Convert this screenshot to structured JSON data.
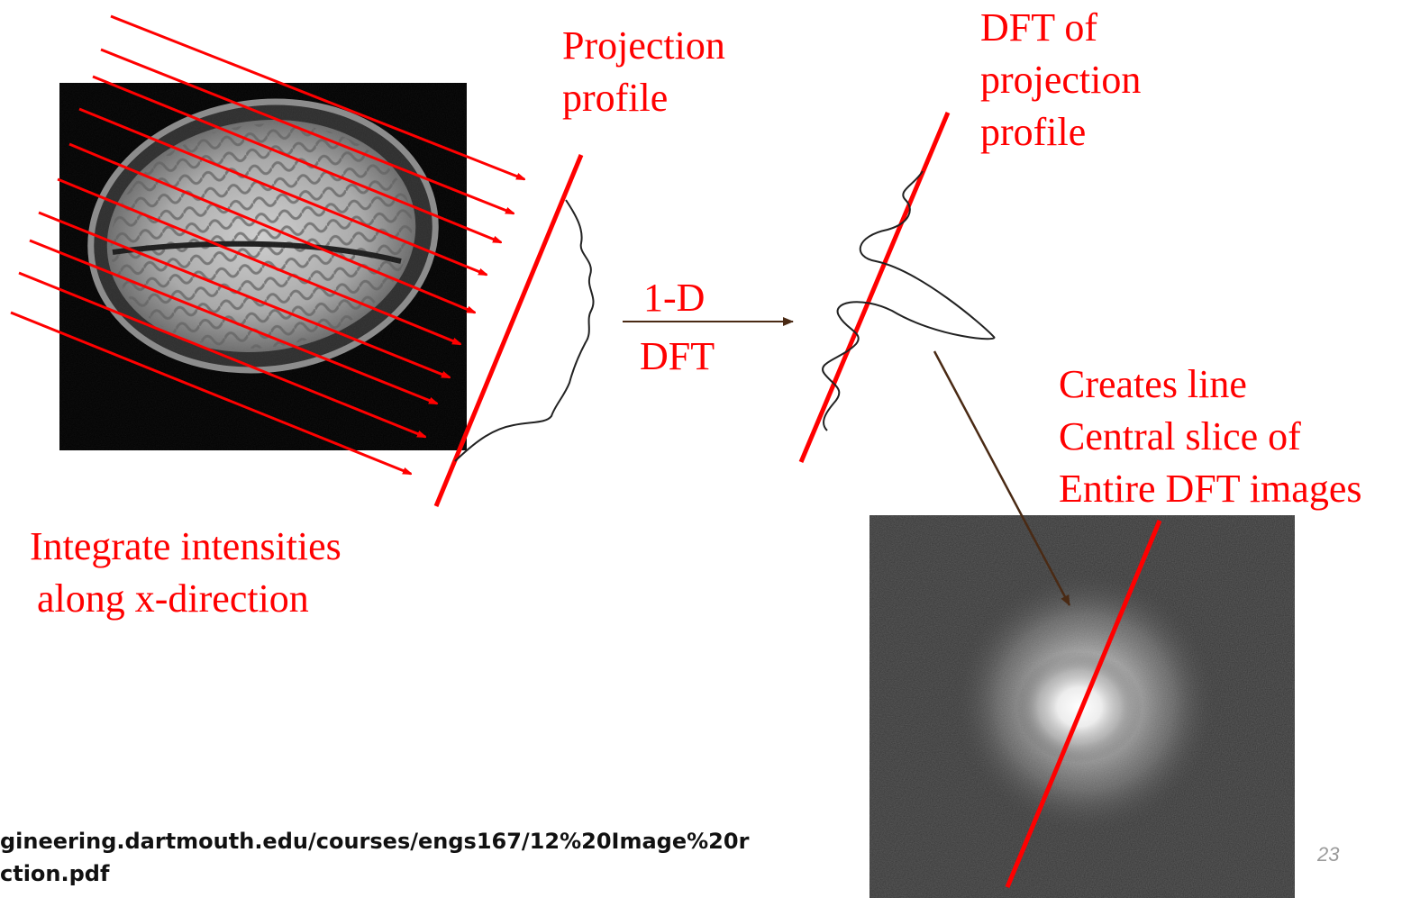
{
  "labels": {
    "projection_profile": [
      "Projection",
      "profile"
    ],
    "dft_of_projection": [
      "DFT of",
      "projection",
      "profile"
    ],
    "dft_top": "1-D",
    "dft_bottom": "DFT",
    "creates_line": [
      "Creates line",
      "Central slice of",
      "Entire DFT images"
    ],
    "integrate": [
      "Integrate intensities",
      "along x-direction"
    ]
  },
  "source": {
    "line1": "gineering.dartmouth.edu/courses/engs167/12%20Image%20r",
    "line2": "ction.pdf"
  },
  "page_number": "23",
  "colors": {
    "annotation": "#ff0000",
    "arrow_dark": "#4a2a14",
    "profile_curve": "#222222",
    "mri_background": "#000000",
    "dft_background": "#353535"
  },
  "images": {
    "brain": "brain-mri-axial-slice",
    "dft": "dft-magnitude-spectrum"
  }
}
